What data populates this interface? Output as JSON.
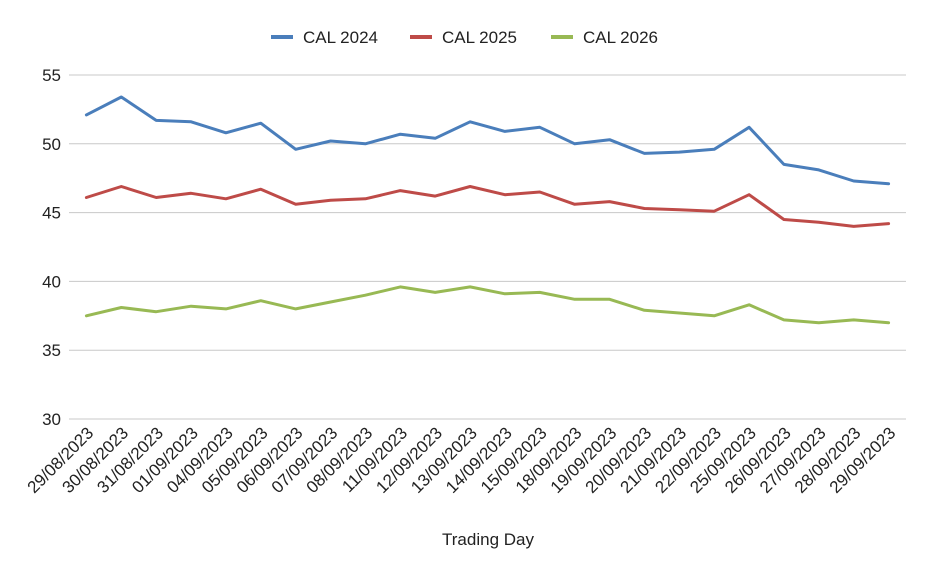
{
  "chart_data": {
    "type": "line",
    "title": "",
    "xlabel": "Trading Day",
    "ylabel": "",
    "ylim": [
      30,
      55
    ],
    "yticks": [
      30,
      35,
      40,
      45,
      50,
      55
    ],
    "grid": true,
    "legend_position": "top",
    "categories": [
      "29/08/2023",
      "30/08/2023",
      "31/08/2023",
      "01/09/2023",
      "04/09/2023",
      "05/09/2023",
      "06/09/2023",
      "07/09/2023",
      "08/09/2023",
      "11/09/2023",
      "12/09/2023",
      "13/09/2023",
      "14/09/2023",
      "15/09/2023",
      "18/09/2023",
      "19/09/2023",
      "20/09/2023",
      "21/09/2023",
      "22/09/2023",
      "25/09/2023",
      "26/09/2023",
      "27/09/2023",
      "28/09/2023",
      "29/09/2023"
    ],
    "series": [
      {
        "name": "CAL 2024",
        "color": "#4a7ebb",
        "values": [
          52.1,
          53.4,
          51.7,
          51.6,
          50.8,
          51.5,
          49.6,
          50.2,
          50.0,
          50.7,
          50.4,
          51.6,
          50.9,
          51.2,
          50.0,
          50.3,
          49.3,
          49.4,
          49.6,
          51.2,
          48.5,
          48.1,
          47.3,
          47.1
        ]
      },
      {
        "name": "CAL 2025",
        "color": "#be4b48",
        "values": [
          46.1,
          46.9,
          46.1,
          46.4,
          46.0,
          46.7,
          45.6,
          45.9,
          46.0,
          46.6,
          46.2,
          46.9,
          46.3,
          46.5,
          45.6,
          45.8,
          45.3,
          45.2,
          45.1,
          46.3,
          44.5,
          44.3,
          44.0,
          44.2
        ]
      },
      {
        "name": "CAL 2026",
        "color": "#98b954",
        "values": [
          37.5,
          38.1,
          37.8,
          38.2,
          38.0,
          38.6,
          38.0,
          38.5,
          39.0,
          39.6,
          39.2,
          39.6,
          39.1,
          39.2,
          38.7,
          38.7,
          37.9,
          37.7,
          37.5,
          38.3,
          37.2,
          37.0,
          37.2,
          37.0
        ]
      }
    ]
  }
}
